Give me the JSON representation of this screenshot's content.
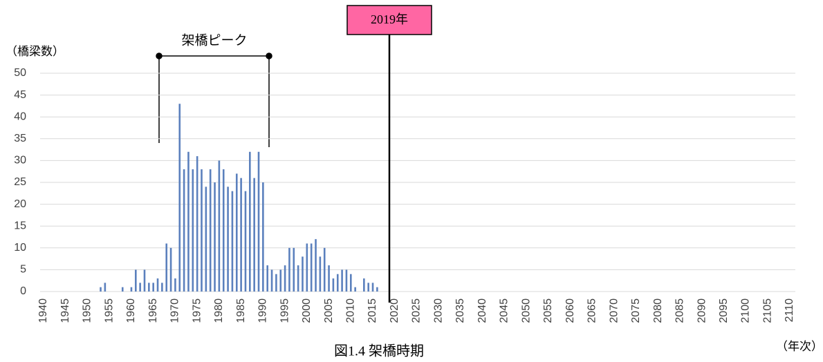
{
  "chart_data": {
    "type": "bar",
    "caption": "図1.4 架橋時期",
    "y_label": "（橋梁数）",
    "x_label": "（年次）",
    "annotations": {
      "peak": "架橋ピーク",
      "marker": "2019年"
    },
    "x": [
      1953,
      1954,
      1958,
      1960,
      1961,
      1962,
      1963,
      1964,
      1965,
      1966,
      1967,
      1968,
      1969,
      1970,
      1971,
      1972,
      1973,
      1974,
      1975,
      1976,
      1977,
      1978,
      1979,
      1980,
      1981,
      1982,
      1983,
      1984,
      1985,
      1986,
      1987,
      1988,
      1989,
      1990,
      1991,
      1992,
      1993,
      1994,
      1995,
      1996,
      1997,
      1998,
      1999,
      2000,
      2001,
      2002,
      2003,
      2004,
      2005,
      2006,
      2007,
      2008,
      2009,
      2010,
      2011,
      2013,
      2014,
      2015,
      2016
    ],
    "values": [
      1,
      2,
      1,
      1,
      5,
      2,
      5,
      2,
      2,
      3,
      2,
      11,
      10,
      3,
      43,
      28,
      32,
      28,
      31,
      28,
      24,
      28,
      25,
      30,
      28,
      24,
      23,
      27,
      26,
      23,
      32,
      26,
      32,
      25,
      6,
      5,
      4,
      5,
      6,
      10,
      10,
      6,
      8,
      11,
      11,
      12,
      8,
      10,
      6,
      3,
      4,
      5,
      5,
      4,
      1,
      3,
      2,
      2,
      1
    ],
    "color": "#5b80bd",
    "xlim": [
      1940,
      2110
    ],
    "xticks": [
      1940,
      1945,
      1950,
      1955,
      1960,
      1965,
      1970,
      1975,
      1980,
      1985,
      1990,
      1995,
      2000,
      2005,
      2010,
      2015,
      2020,
      2025,
      2030,
      2035,
      2040,
      2045,
      2050,
      2055,
      2060,
      2065,
      2070,
      2075,
      2080,
      2085,
      2090,
      2095,
      2100,
      2105,
      2110
    ],
    "ylim": [
      0,
      50
    ],
    "yticks": [
      0,
      5,
      10,
      15,
      20,
      25,
      30,
      35,
      40,
      45,
      50
    ],
    "grid": true
  }
}
